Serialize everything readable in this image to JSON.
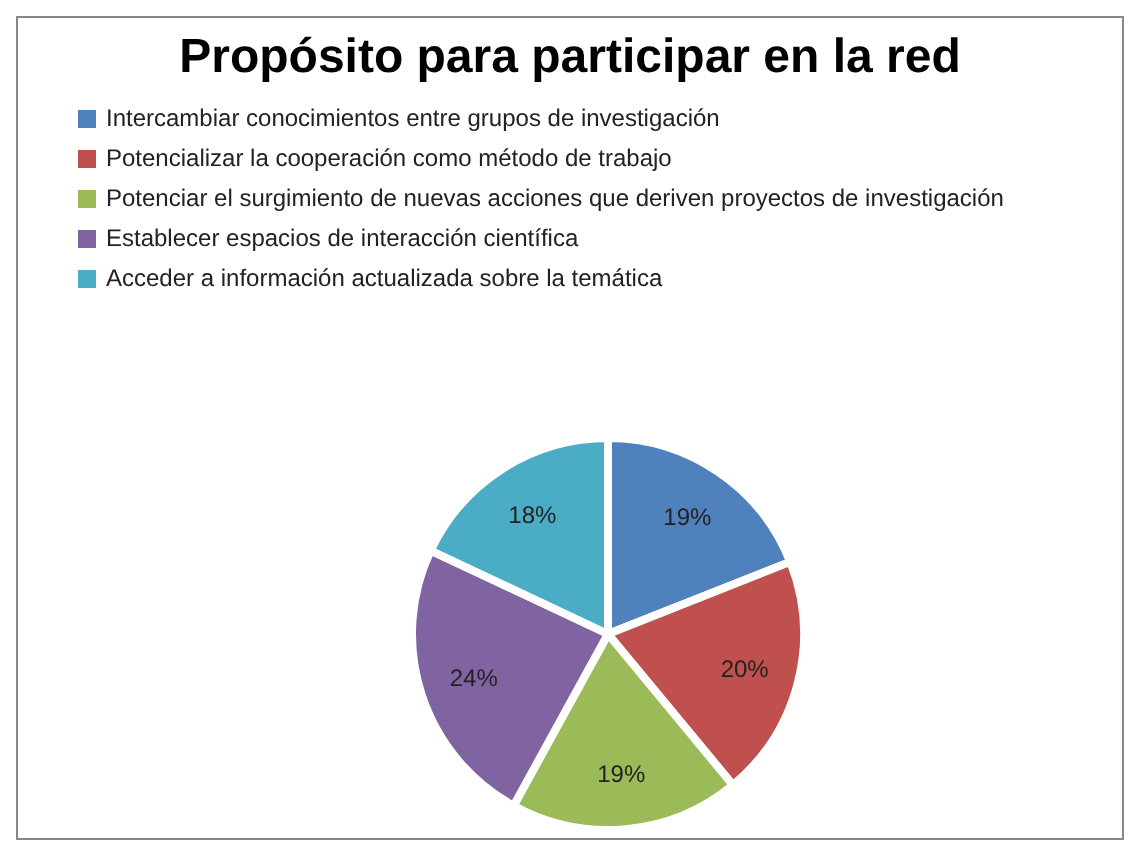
{
  "chart_data": {
    "type": "pie",
    "title": "Propósito para participar en la red",
    "categories": [
      "Intercambiar conocimientos entre grupos de investigación",
      "Potencializar la cooperación como método de trabajo",
      "Potenciar el surgimiento de  nuevas acciones que deriven  proyectos de investigación",
      "Establecer espacios de interacción científica",
      "Acceder a información actualizada sobre la temática"
    ],
    "values": [
      19,
      20,
      19,
      24,
      18
    ],
    "colors": [
      "#4f81bd",
      "#c0504d",
      "#9bbb59",
      "#8064a2",
      "#4bacc6"
    ],
    "value_labels": [
      "19%",
      "20%",
      "19%",
      "24%",
      "18%"
    ],
    "legend": "top left"
  }
}
